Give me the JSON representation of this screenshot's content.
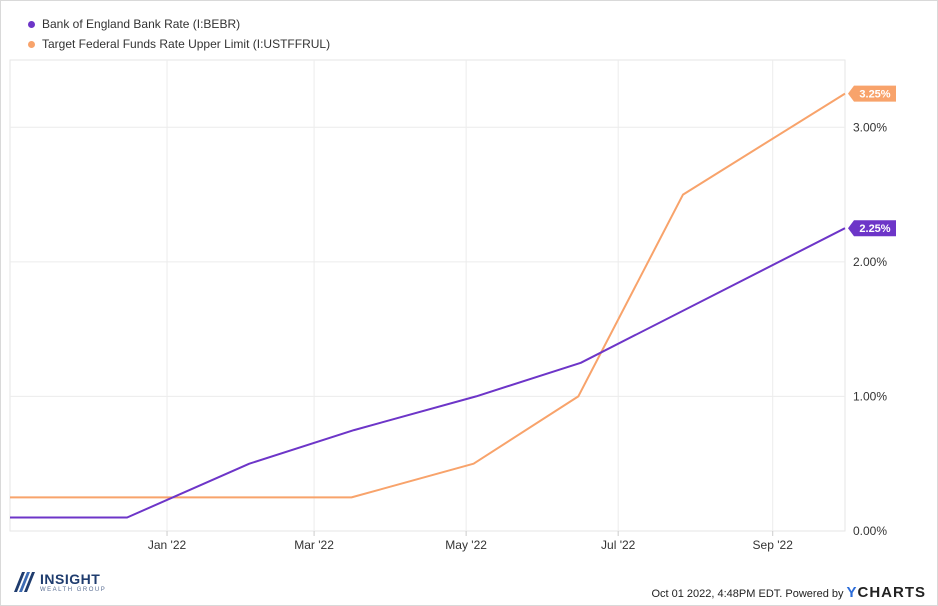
{
  "chart_data": {
    "type": "line",
    "x_range": [
      "2021-10-30",
      "2022-09-30"
    ],
    "ylim": [
      0,
      3.5
    ],
    "y_ticks": [
      0,
      1,
      2,
      3
    ],
    "y_tick_labels": [
      "0.00%",
      "1.00%",
      "2.00%",
      "3.00%"
    ],
    "x_ticks": [
      "2022-01-01",
      "2022-03-01",
      "2022-05-01",
      "2022-07-01",
      "2022-09-01"
    ],
    "x_tick_labels": [
      "Jan '22",
      "Mar '22",
      "May '22",
      "Jul '22",
      "Sep '22"
    ],
    "grid": true,
    "legend_position": "top-left",
    "series": [
      {
        "name": "Bank of England Bank Rate (I:BEBR)",
        "color": "#6d35c8",
        "end_label": "2.25%",
        "points": [
          [
            "2021-10-30",
            0.1
          ],
          [
            "2021-12-16",
            0.1
          ],
          [
            "2022-02-03",
            0.5
          ],
          [
            "2022-03-17",
            0.75
          ],
          [
            "2022-05-05",
            1.0
          ],
          [
            "2022-06-16",
            1.25
          ],
          [
            "2022-09-30",
            2.25
          ]
        ]
      },
      {
        "name": "Target Federal Funds Rate Upper Limit (I:USTFFRUL)",
        "color": "#f8a36b",
        "end_label": "3.25%",
        "points": [
          [
            "2021-10-30",
            0.25
          ],
          [
            "2022-03-16",
            0.25
          ],
          [
            "2022-05-04",
            0.5
          ],
          [
            "2022-06-15",
            1.0
          ],
          [
            "2022-07-27",
            2.5
          ],
          [
            "2022-09-30",
            3.25
          ]
        ]
      }
    ]
  },
  "legend": {
    "items": [
      {
        "label": "Bank of England Bank Rate (I:BEBR)",
        "color": "#6d35c8"
      },
      {
        "label": "Target Federal Funds Rate Upper Limit (I:USTFFRUL)",
        "color": "#f8a36b"
      }
    ]
  },
  "footer": {
    "brand_name": "INSIGHT",
    "brand_sub": "WEALTH GROUP",
    "timestamp": "Oct 01 2022, 4:48PM EDT.",
    "powered_by": "Powered by",
    "ycharts_y": "Y",
    "ycharts_rest": "CHARTS"
  }
}
